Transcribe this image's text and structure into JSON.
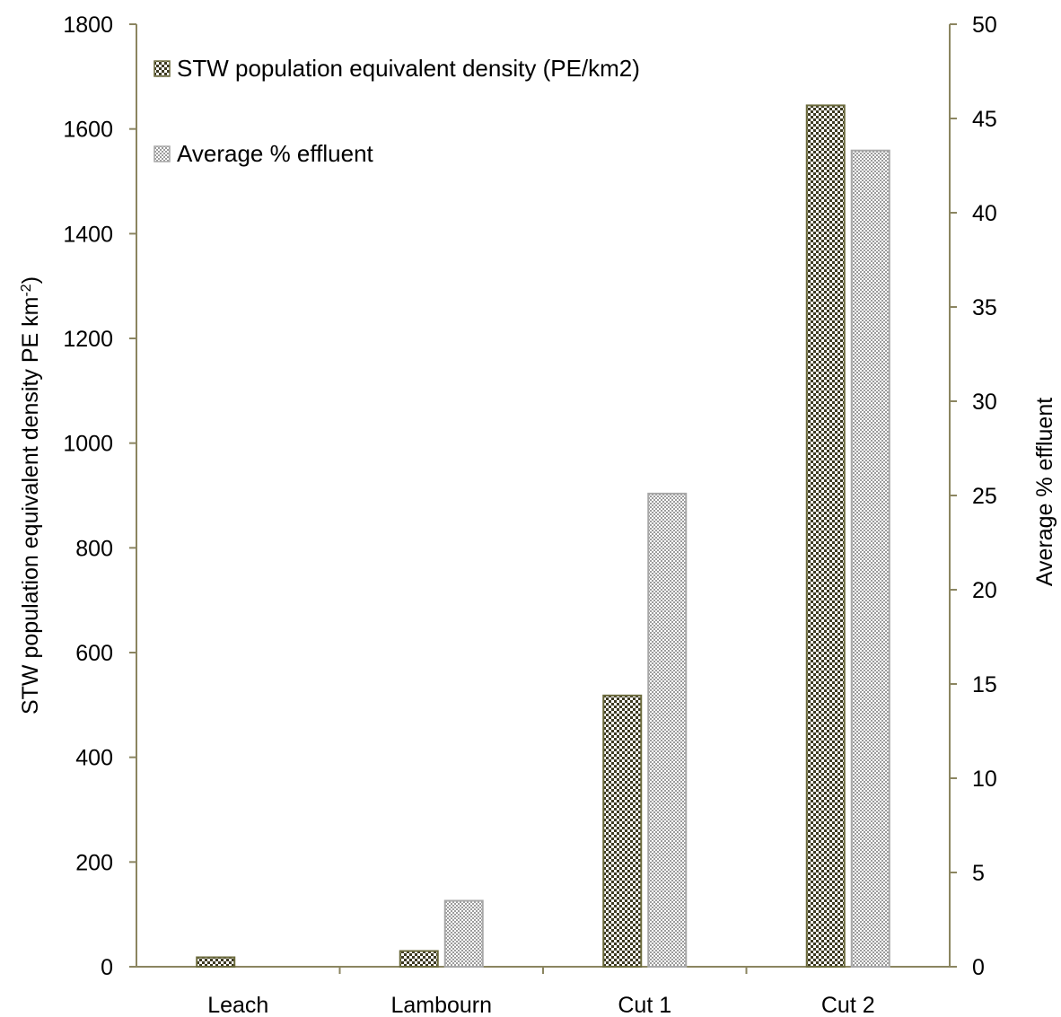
{
  "chart_data": {
    "type": "bar",
    "categories": [
      "Leach",
      "Lambourn",
      "Cut 1",
      "Cut 2"
    ],
    "series": [
      {
        "name": "STW population equivalent density (PE/km2)",
        "axis": "left",
        "values": [
          18,
          30,
          518,
          1645
        ],
        "color": "#6b6a3c",
        "pattern": "checker-dark"
      },
      {
        "name": "Average % effluent",
        "axis": "right",
        "values": [
          0,
          3.5,
          25.1,
          43.3
        ],
        "color": "#a8a8a8",
        "pattern": "checker-light"
      }
    ],
    "yaxis_left": {
      "label_main": "STW population equivalent density PE km",
      "label_sup": "-2",
      "label_close": ")",
      "ylim": [
        0,
        1800
      ],
      "ticks": [
        "0",
        "200",
        "400",
        "600",
        "800",
        "1000",
        "1200",
        "1400",
        "1600",
        "1800"
      ]
    },
    "yaxis_right": {
      "label": "Average % effluent",
      "ylim": [
        0,
        50
      ],
      "ticks": [
        "0",
        "5",
        "10",
        "15",
        "20",
        "25",
        "30",
        "35",
        "40",
        "45",
        "50"
      ]
    },
    "axis_color": "#8b8560",
    "grid": false,
    "legend_position": "top-left"
  }
}
